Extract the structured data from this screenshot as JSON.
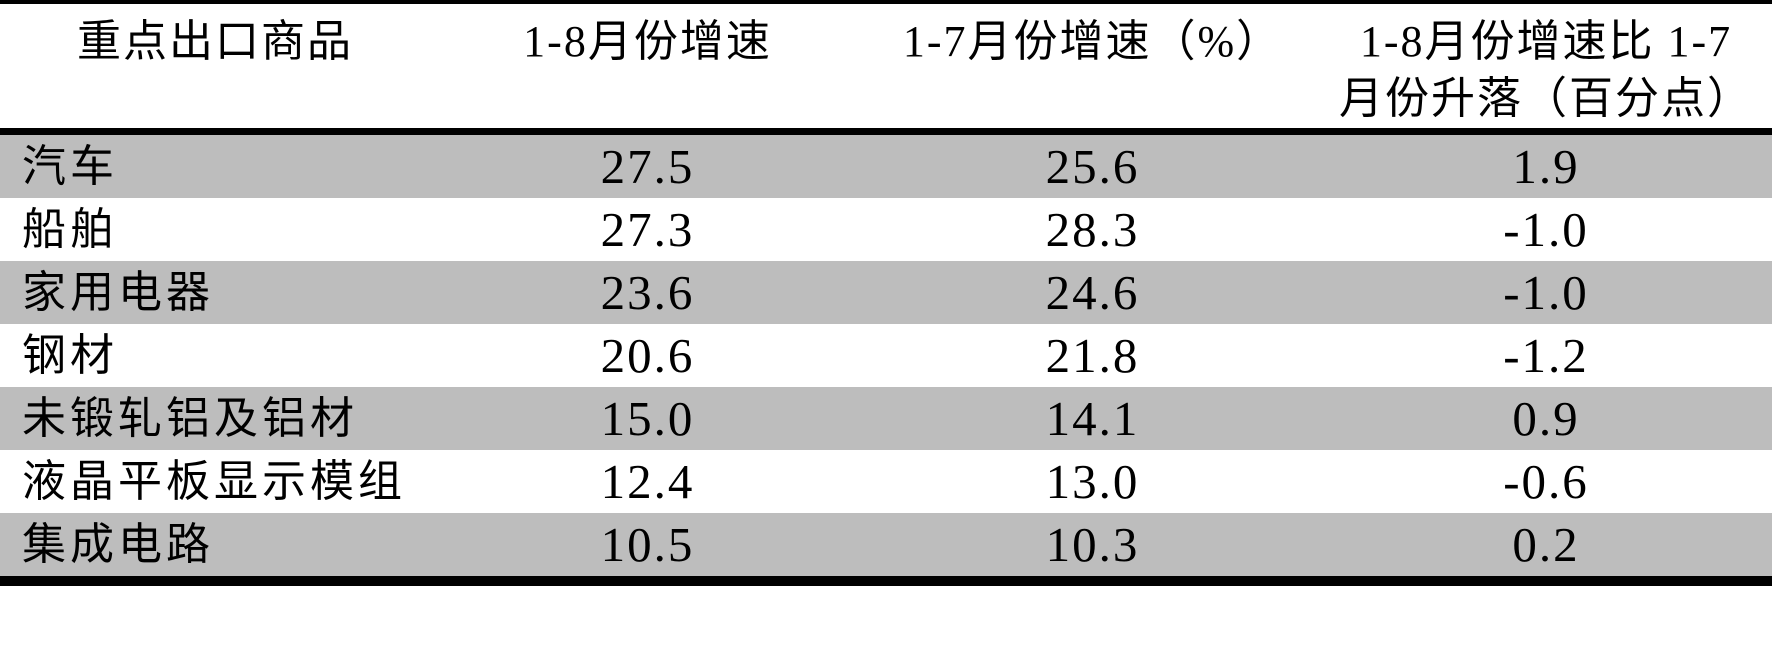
{
  "table": {
    "header": {
      "commodity": "重点出口商品",
      "growth_1_8": "1-8月份增速",
      "growth_1_7": "1-7月份增速（%）",
      "change_line1": "1-8月份增速比 1-7",
      "change_line2": "月份升落（百分点）",
      "change_full": "1-8月份增速比1-7月份升落（百分点）"
    },
    "rows": [
      {
        "name": "汽车",
        "growth_1_8": "27.5",
        "growth_1_7": "25.6",
        "change": "1.9"
      },
      {
        "name": "船舶",
        "growth_1_8": "27.3",
        "growth_1_7": "28.3",
        "change": "-1.0"
      },
      {
        "name": "家用电器",
        "growth_1_8": "23.6",
        "growth_1_7": "24.6",
        "change": "-1.0"
      },
      {
        "name": "钢材",
        "growth_1_8": "20.6",
        "growth_1_7": "21.8",
        "change": "-1.2"
      },
      {
        "name": "未锻轧铝及铝材",
        "growth_1_8": "15.0",
        "growth_1_7": "14.1",
        "change": "0.9"
      },
      {
        "name": "液晶平板显示模组",
        "growth_1_8": "12.4",
        "growth_1_7": "13.0",
        "change": "-0.6"
      },
      {
        "name": "集成电路",
        "growth_1_8": "10.5",
        "growth_1_7": "10.3",
        "change": "0.2"
      }
    ]
  },
  "colors": {
    "row_shade": "#bdbdbd",
    "rule": "#000000",
    "background": "#ffffff",
    "text": "#000000"
  },
  "chart_data": {
    "type": "table",
    "columns": [
      "重点出口商品",
      "1-8月份增速",
      "1-7月份增速（%）",
      "1-8月份增速比1-7月份升落（百分点）"
    ],
    "categories": [
      "汽车",
      "船舶",
      "家用电器",
      "钢材",
      "未锻轧铝及铝材",
      "液晶平板显示模组",
      "集成电路"
    ],
    "series": [
      {
        "name": "1-8月份增速",
        "values": [
          27.5,
          27.3,
          23.6,
          20.6,
          15.0,
          12.4,
          10.5
        ]
      },
      {
        "name": "1-7月份增速（%）",
        "values": [
          25.6,
          28.3,
          24.6,
          21.8,
          14.1,
          13.0,
          10.3
        ]
      },
      {
        "name": "1-8月份增速比1-7月份升落（百分点）",
        "values": [
          1.9,
          -1.0,
          -1.0,
          -1.2,
          0.9,
          -0.6,
          0.2
        ]
      }
    ]
  }
}
